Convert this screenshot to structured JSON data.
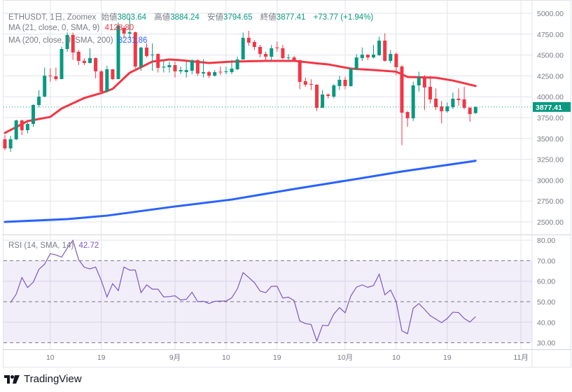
{
  "legend": {
    "symbol": "ETHUSDT, 1日, Zoomex",
    "open_label": "始値",
    "open": "3803.64",
    "high_label": "高値",
    "high": "3884.24",
    "low_label": "安値",
    "low": "3794.65",
    "close_label": "終値",
    "close": "3877.41",
    "change": "+73.77 (+1.94%)",
    "ma21_label": "MA (21, close, 0, SMA, 9)",
    "ma21_value": "4128.80",
    "ma200_label": "MA (200, close, 0, SMA, 200)",
    "ma200_value": "3231.86",
    "rsi_label": "RSI (14, SMA, 14)",
    "rsi_value": "42.72"
  },
  "last_price_label": "3877.41",
  "branding": "TradingView",
  "colors": {
    "up": "#089981",
    "down": "#f23645",
    "ma21": "#f23645",
    "ma200": "#2962ff",
    "rsi": "#7e57c2",
    "grid": "#e0e3eb"
  },
  "chart_data": [
    {
      "type": "candlestick",
      "price_ticks": [
        "5000.00",
        "4750.00",
        "4500.00",
        "4250.00",
        "4000.00",
        "3750.00",
        "3500.00",
        "3250.00",
        "3000.00",
        "2750.00",
        "2500.00"
      ],
      "ylim": [
        2500,
        5000
      ],
      "x_ticks": [
        {
          "label": "10",
          "date": "8/10"
        },
        {
          "label": "19",
          "date": "8/19"
        },
        {
          "label": "9月",
          "date": "9/1"
        },
        {
          "label": "10",
          "date": "9/10"
        },
        {
          "label": "19",
          "date": "9/19"
        },
        {
          "label": "10月",
          "date": "10/1"
        },
        {
          "label": "10",
          "date": "10/10"
        },
        {
          "label": "19",
          "date": "10/19"
        },
        {
          "label": "11月",
          "date": "11/1"
        }
      ],
      "candle_fields": [
        "date",
        "open",
        "high",
        "low",
        "close",
        "rsi"
      ],
      "candles": [
        [
          "8/2",
          3490,
          3540,
          3360,
          3381,
          null
        ],
        [
          "8/3",
          3381,
          3530,
          3340,
          3490,
          49.6
        ],
        [
          "8/4",
          3490,
          3725,
          3480,
          3716,
          53.7
        ],
        [
          "8/5",
          3716,
          3725,
          3540,
          3599,
          61.8
        ],
        [
          "8/6",
          3599,
          3690,
          3560,
          3674,
          56.9
        ],
        [
          "8/7",
          3674,
          3910,
          3640,
          3901,
          59.5
        ],
        [
          "8/8",
          3901,
          4080,
          3870,
          4002,
          65.8
        ],
        [
          "8/9",
          4002,
          4350,
          3993,
          4253,
          68.3
        ],
        [
          "8/10",
          4253,
          4340,
          4180,
          4245,
          73.4
        ],
        [
          "8/11",
          4245,
          4350,
          4190,
          4211,
          72.8
        ],
        [
          "8/12",
          4211,
          4600,
          4211,
          4572,
          71.7
        ],
        [
          "8/13",
          4572,
          4770,
          4540,
          4740,
          76.2
        ],
        [
          "8/14",
          4740,
          4770,
          4440,
          4530,
          79.9
        ],
        [
          "8/15",
          4539,
          4560,
          4380,
          4430,
          70.5
        ],
        [
          "8/16",
          4430,
          4460,
          4380,
          4404,
          66.8
        ],
        [
          "8/17",
          4404,
          4580,
          4400,
          4463,
          66
        ],
        [
          "8/18",
          4463,
          4470,
          4220,
          4304,
          66.9
        ],
        [
          "8/19",
          4304,
          4320,
          4060,
          4060,
          60.3
        ],
        [
          "8/20",
          4060,
          4370,
          4050,
          4329,
          52.3
        ],
        [
          "8/21",
          4329,
          4330,
          4200,
          4211,
          58.8
        ],
        [
          "8/22",
          4211,
          4890,
          4211,
          4849,
          55.4
        ],
        [
          "8/23",
          4824,
          4850,
          4700,
          4757,
          66.9
        ],
        [
          "8/24",
          4757,
          4950,
          4700,
          4773,
          65.4
        ],
        [
          "8/25",
          4773,
          4780,
          4340,
          4362,
          65.4
        ],
        [
          "8/26",
          4362,
          4600,
          4310,
          4589,
          54.4
        ],
        [
          "8/27",
          4589,
          4640,
          4470,
          4488,
          58.2
        ],
        [
          "8/28",
          4497,
          4640,
          4310,
          4505,
          56.1
        ],
        [
          "8/29",
          4513,
          4520,
          4290,
          4346,
          56.1
        ],
        [
          "8/30",
          4350,
          4450,
          4290,
          4360,
          52.3
        ],
        [
          "8/31",
          4354,
          4420,
          4290,
          4379,
          52.5
        ],
        [
          "9/1",
          4379,
          4420,
          4230,
          4304,
          52.9
        ],
        [
          "9/2",
          4304,
          4360,
          4270,
          4320,
          50.8
        ],
        [
          "9/3",
          4295,
          4420,
          4230,
          4320,
          51.2
        ],
        [
          "9/4",
          4312,
          4450,
          4270,
          4438,
          54.6
        ],
        [
          "9/5",
          4438,
          4450,
          4250,
          4279,
          50
        ],
        [
          "9/6",
          4279,
          4450,
          4230,
          4295,
          50.2
        ],
        [
          "9/7",
          4295,
          4310,
          4225,
          4253,
          49.1
        ],
        [
          "9/8",
          4253,
          4320,
          4240,
          4295,
          50.2
        ],
        [
          "9/9",
          4300,
          4360,
          4260,
          4295,
          50.3
        ],
        [
          "9/10",
          4295,
          4360,
          4270,
          4304,
          50.3
        ],
        [
          "9/11",
          4295,
          4440,
          4270,
          4337,
          51.9
        ],
        [
          "9/12",
          4329,
          4480,
          4320,
          4446,
          56.3
        ],
        [
          "9/13",
          4446,
          4770,
          4446,
          4706,
          64.2
        ],
        [
          "9/14",
          4706,
          4790,
          4610,
          4648,
          61.8
        ],
        [
          "9/15",
          4656,
          4680,
          4560,
          4597,
          59.3
        ],
        [
          "9/16",
          4597,
          4620,
          4470,
          4513,
          55.2
        ],
        [
          "9/17",
          4513,
          4540,
          4430,
          4480,
          54.4
        ],
        [
          "9/18",
          4480,
          4620,
          4430,
          4581,
          57.5
        ],
        [
          "9/19",
          4590,
          4660,
          4540,
          4581,
          57.5
        ],
        [
          "9/20",
          4581,
          4620,
          4450,
          4463,
          51.8
        ],
        [
          "9/21",
          4463,
          4510,
          4440,
          4471,
          52.2
        ],
        [
          "9/22",
          4471,
          4490,
          4430,
          4438,
          50.5
        ],
        [
          "9/23",
          4438,
          4445,
          4090,
          4178,
          40.6
        ],
        [
          "9/24",
          4186,
          4230,
          4120,
          4144,
          39.3
        ],
        [
          "9/25",
          4153,
          4210,
          4080,
          4144,
          38.9
        ],
        [
          "9/26",
          4144,
          4150,
          3830,
          3867,
          30.8
        ],
        [
          "9/27",
          3867,
          4080,
          3867,
          4027,
          38.5
        ],
        [
          "9/28",
          4027,
          4040,
          3980,
          4010,
          38.3
        ],
        [
          "9/29",
          4002,
          4150,
          3980,
          4136,
          44
        ],
        [
          "9/30",
          4128,
          4250,
          4080,
          4203,
          47.1
        ],
        [
          "10/1",
          4203,
          4240,
          4090,
          4128,
          44.6
        ],
        [
          "10/2",
          4128,
          4350,
          4120,
          4337,
          52.8
        ],
        [
          "10/3",
          4329,
          4510,
          4320,
          4471,
          57.1
        ],
        [
          "10/4",
          4463,
          4590,
          4430,
          4505,
          58.2
        ],
        [
          "10/5",
          4505,
          4505,
          4440,
          4471,
          57
        ],
        [
          "10/6",
          4471,
          4620,
          4460,
          4505,
          57.9
        ],
        [
          "10/7",
          4497,
          4720,
          4490,
          4673,
          63.4
        ],
        [
          "10/8",
          4673,
          4760,
          4420,
          4430,
          53.4
        ],
        [
          "10/9",
          4430,
          4560,
          4400,
          4513,
          55.7
        ],
        [
          "10/10",
          4513,
          4530,
          4260,
          4354,
          50
        ],
        [
          "10/11",
          4362,
          4380,
          3420,
          3809,
          35.8
        ],
        [
          "10/12",
          3817,
          3830,
          3640,
          3742,
          34.4
        ],
        [
          "10/13",
          3742,
          4180,
          3710,
          4136,
          46.8
        ],
        [
          "10/14",
          4136,
          4300,
          4060,
          4237,
          49.1
        ],
        [
          "10/15",
          4237,
          4260,
          3840,
          4111,
          46.2
        ],
        [
          "10/16",
          4119,
          4250,
          3920,
          3968,
          43.2
        ],
        [
          "10/17",
          3977,
          4100,
          3840,
          3876,
          41.5
        ],
        [
          "10/18",
          3884,
          3950,
          3680,
          3826,
          39.8
        ],
        [
          "10/19",
          3826,
          3930,
          3810,
          3884,
          41.8
        ],
        [
          "10/20",
          3876,
          4050,
          3850,
          3977,
          44.9
        ],
        [
          "10/21",
          3977,
          4100,
          3890,
          3960,
          44.7
        ],
        [
          "10/22",
          3968,
          4120,
          3850,
          3867,
          41.8
        ],
        [
          "10/23",
          3867,
          3880,
          3700,
          3792,
          40.1
        ],
        [
          "10/24",
          3803.64,
          3884.24,
          3794.65,
          3877.41,
          42.72
        ]
      ],
      "ma21": [
        [
          "8/2",
          3566
        ],
        [
          "8/6",
          3708
        ],
        [
          "8/10",
          3758
        ],
        [
          "8/12",
          3859
        ],
        [
          "8/16",
          3985
        ],
        [
          "8/19",
          4044
        ],
        [
          "8/21",
          4094
        ],
        [
          "8/24",
          4287
        ],
        [
          "8/28",
          4421
        ],
        [
          "8/31",
          4446
        ],
        [
          "9/2",
          4438
        ],
        [
          "9/7",
          4404
        ],
        [
          "9/11",
          4421
        ],
        [
          "9/17",
          4430
        ],
        [
          "9/22",
          4430
        ],
        [
          "9/26",
          4400
        ],
        [
          "9/28",
          4388
        ],
        [
          "10/2",
          4337
        ],
        [
          "10/6",
          4320
        ],
        [
          "10/10",
          4300
        ],
        [
          "10/12",
          4237
        ],
        [
          "10/17",
          4228
        ],
        [
          "10/20",
          4194
        ],
        [
          "10/24",
          4128.8
        ]
      ],
      "ma200": [
        [
          "8/2",
          2500
        ],
        [
          "8/13",
          2534
        ],
        [
          "8/20",
          2575
        ],
        [
          "9/1",
          2685
        ],
        [
          "9/11",
          2768
        ],
        [
          "9/22",
          2894
        ],
        [
          "10/2",
          3003
        ],
        [
          "10/11",
          3104
        ],
        [
          "10/17",
          3163
        ],
        [
          "10/24",
          3231.86
        ]
      ]
    },
    {
      "type": "line",
      "name": "RSI (14, SMA, 14)",
      "ticks": [
        "80.00",
        "70.00",
        "60.00",
        "50.00",
        "40.00",
        "30.00"
      ],
      "ylim": [
        30,
        80
      ],
      "band": [
        30,
        70
      ],
      "dashed_levels": [
        70,
        50,
        30
      ]
    }
  ]
}
